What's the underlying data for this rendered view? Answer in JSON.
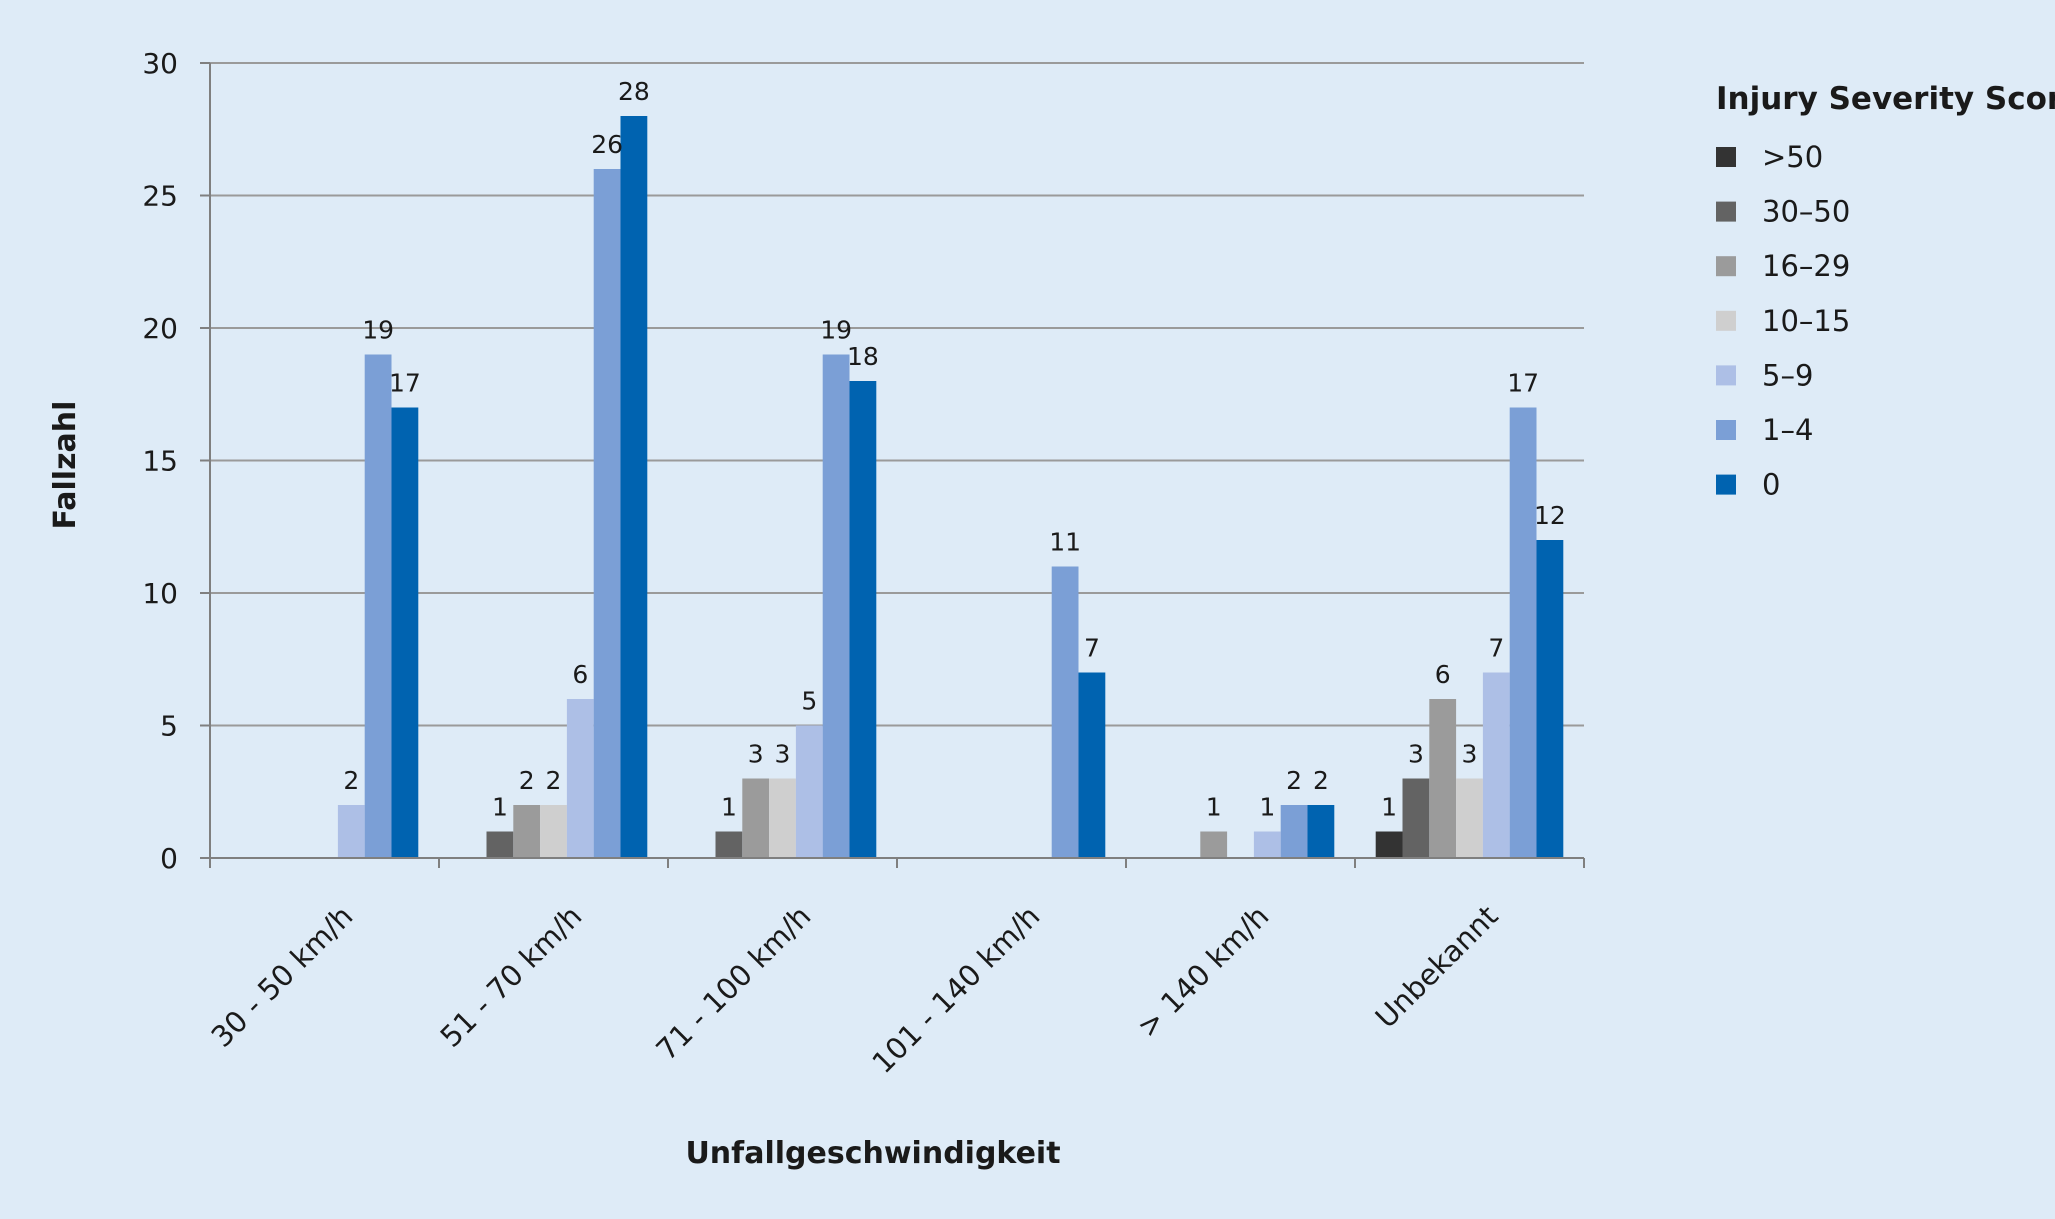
{
  "chart_data": {
    "type": "bar",
    "title": "",
    "xlabel": "Unfallgeschwindigkeit",
    "ylabel": "Fallzahl",
    "ylim": [
      0,
      30
    ],
    "yticks": [
      0,
      5,
      10,
      15,
      20,
      25,
      30
    ],
    "grid": true,
    "legend": {
      "title": "Injury Severity Score",
      "position": "right"
    },
    "categories": [
      "30 - 50 km/h",
      "51 - 70 km/h",
      "71 - 100 km/h",
      "101 - 140 km/h",
      "> 140 km/h",
      "Unbekannt"
    ],
    "series": [
      {
        "name": ">50",
        "color": "#333333",
        "values": [
          null,
          null,
          null,
          null,
          null,
          1
        ]
      },
      {
        "name": "30–50",
        "color": "#636363",
        "values": [
          null,
          1,
          1,
          null,
          null,
          3
        ]
      },
      {
        "name": "16–29",
        "color": "#9b9b9b",
        "values": [
          null,
          2,
          3,
          null,
          1,
          6
        ]
      },
      {
        "name": "10–15",
        "color": "#cfcfcf",
        "values": [
          null,
          2,
          3,
          null,
          null,
          3
        ]
      },
      {
        "name": "5–9",
        "color": "#adbfe6",
        "values": [
          2,
          6,
          5,
          null,
          1,
          7
        ]
      },
      {
        "name": "1–4",
        "color": "#7b9fd6",
        "values": [
          19,
          26,
          19,
          11,
          2,
          17
        ]
      },
      {
        "name": "0",
        "color": "#0063b0",
        "values": [
          17,
          28,
          18,
          7,
          2,
          12
        ]
      }
    ]
  }
}
